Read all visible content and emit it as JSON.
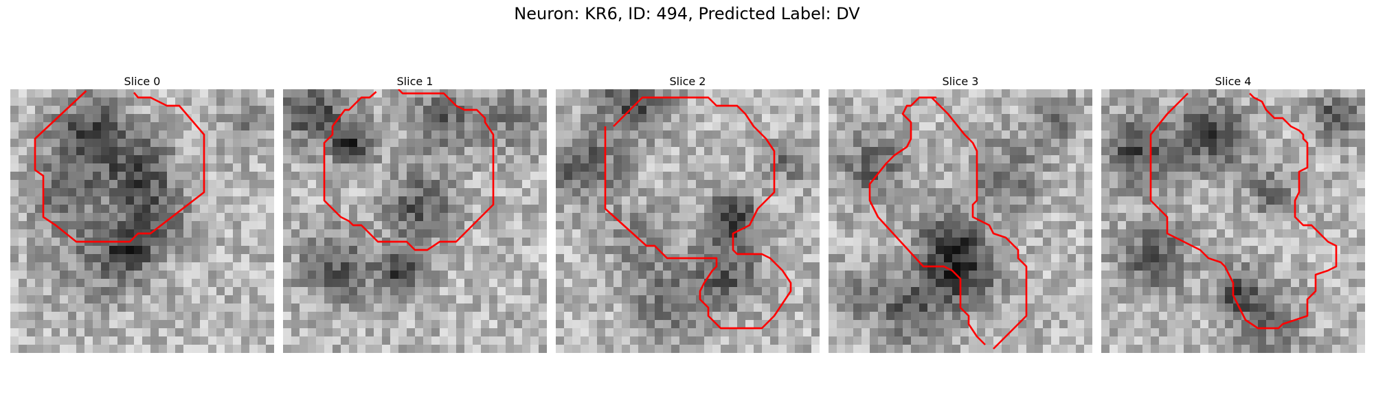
{
  "figure": {
    "title": "Neuron: KR6, ID: 494, Predicted Label: DV"
  },
  "colors": {
    "contour": "#ff0000",
    "colormap": "grayscale"
  },
  "panels": [
    {
      "title": "Slice 0"
    },
    {
      "title": "Slice 1"
    },
    {
      "title": "Slice 2"
    },
    {
      "title": "Slice 3"
    },
    {
      "title": "Slice 4"
    }
  ]
}
